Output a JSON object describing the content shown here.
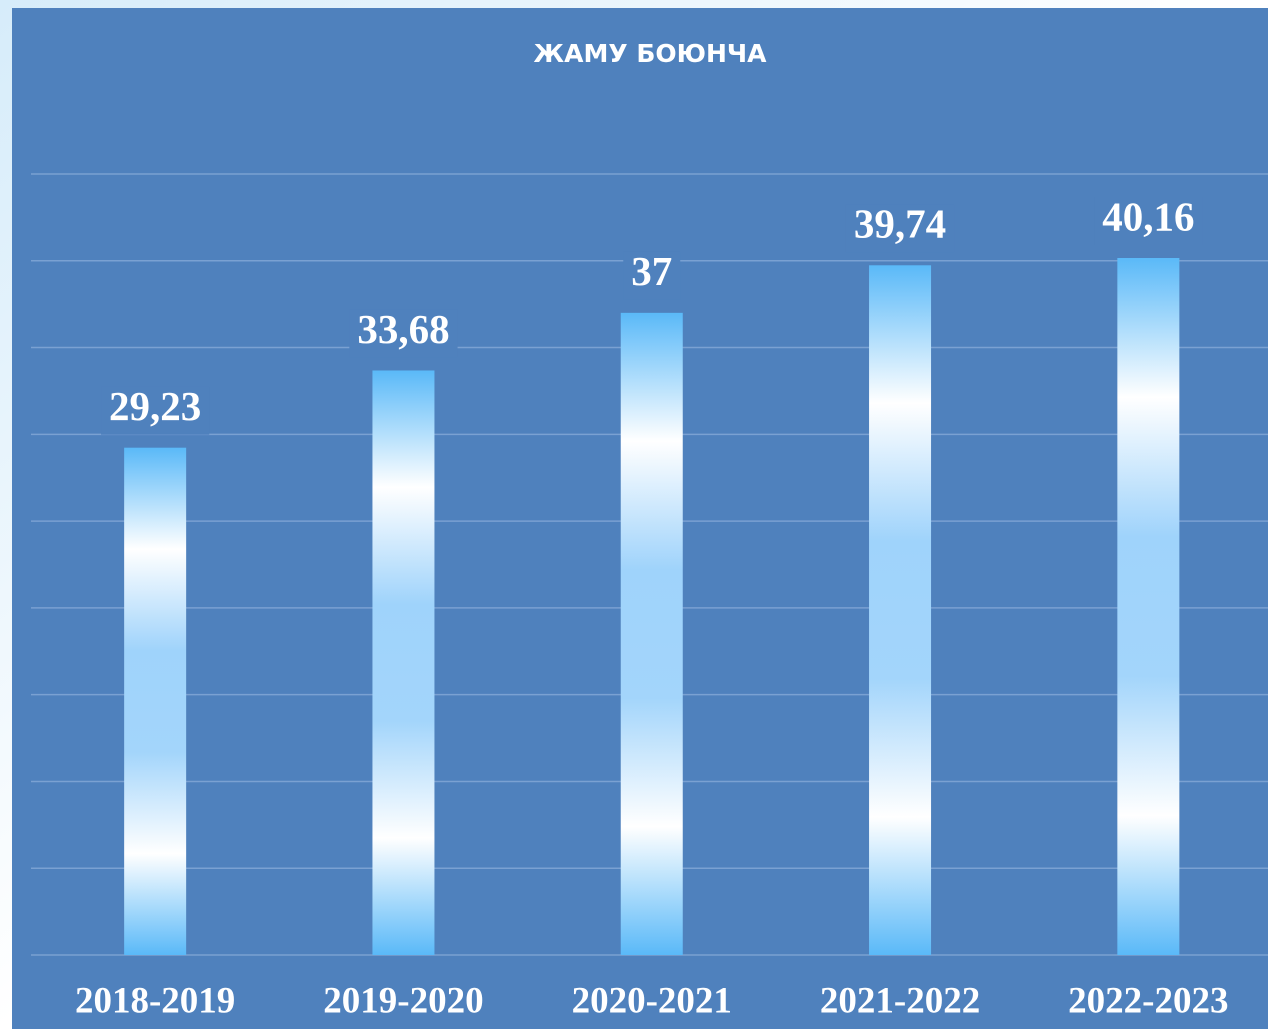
{
  "chart_data": {
    "type": "bar",
    "title": "ЖАМУ БОЮНЧА",
    "categories": [
      "2018-2019",
      "2019-2020",
      "2020-2021",
      "2021-2022",
      "2022-2023"
    ],
    "values": [
      29.23,
      33.68,
      37,
      39.74,
      40.16
    ],
    "value_labels": [
      "29,23",
      "33,68",
      "37",
      "39,74",
      "40,16"
    ],
    "color": "#5ab9f8",
    "ylim": [
      0,
      45
    ],
    "yticks": [
      0,
      5,
      10,
      15,
      20,
      25,
      30,
      35,
      40,
      45
    ],
    "grid": true
  }
}
